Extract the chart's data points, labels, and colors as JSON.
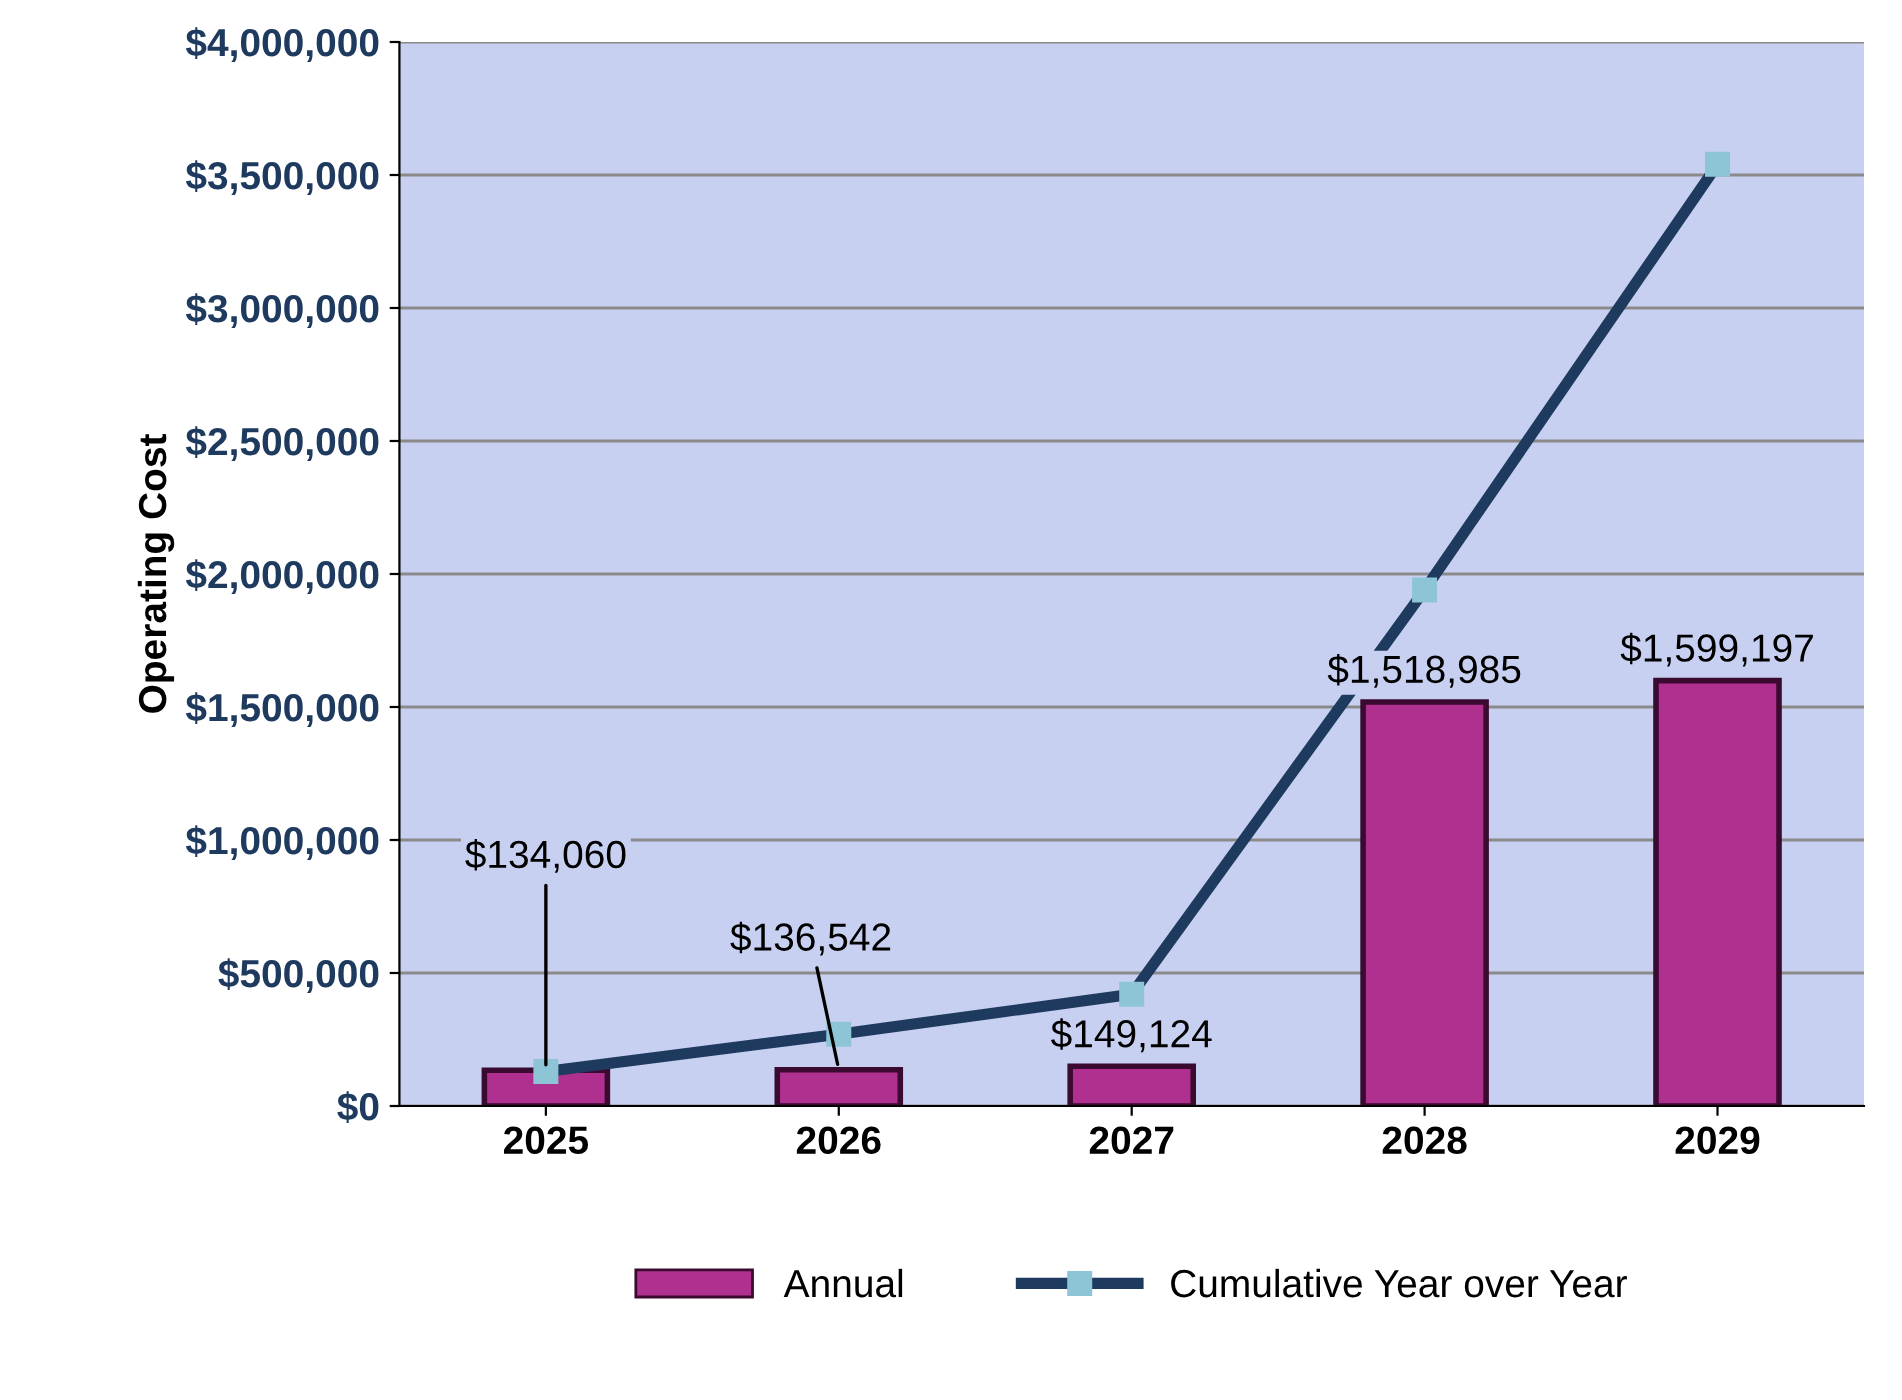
{
  "chart_data": {
    "type": "bar",
    "ylabel": "Operating Cost",
    "categories": [
      "2025",
      "2026",
      "2027",
      "2028",
      "2029"
    ],
    "series": [
      {
        "name": "Annual",
        "color": "#b0308f",
        "values": [
          134060,
          136542,
          149124,
          1518985,
          1599197
        ],
        "value_labels": [
          "$134,060",
          "$136,542",
          "$149,124",
          "$1,518,985",
          "$1,599,197"
        ]
      },
      {
        "name": "Cumulative Year over Year",
        "type": "line",
        "color": "#1f3a5f",
        "marker": "square",
        "values": [
          130000,
          270000,
          420000,
          1940000,
          3540000
        ]
      }
    ],
    "ylim": [
      0,
      4000000
    ],
    "yticks": [
      {
        "value": 0,
        "label": "$0"
      },
      {
        "value": 500000,
        "label": "$500,000"
      },
      {
        "value": 1000000,
        "label": "$1,000,000"
      },
      {
        "value": 1500000,
        "label": "$1,500,000"
      },
      {
        "value": 2000000,
        "label": "$2,000,000"
      },
      {
        "value": 2500000,
        "label": "$2,500,000"
      },
      {
        "value": 3000000,
        "label": "$3,000,000"
      },
      {
        "value": 3500000,
        "label": "$3,500,000"
      },
      {
        "value": 4000000,
        "label": "$4,000,000"
      }
    ],
    "grid": "y",
    "legend": "bottom"
  }
}
